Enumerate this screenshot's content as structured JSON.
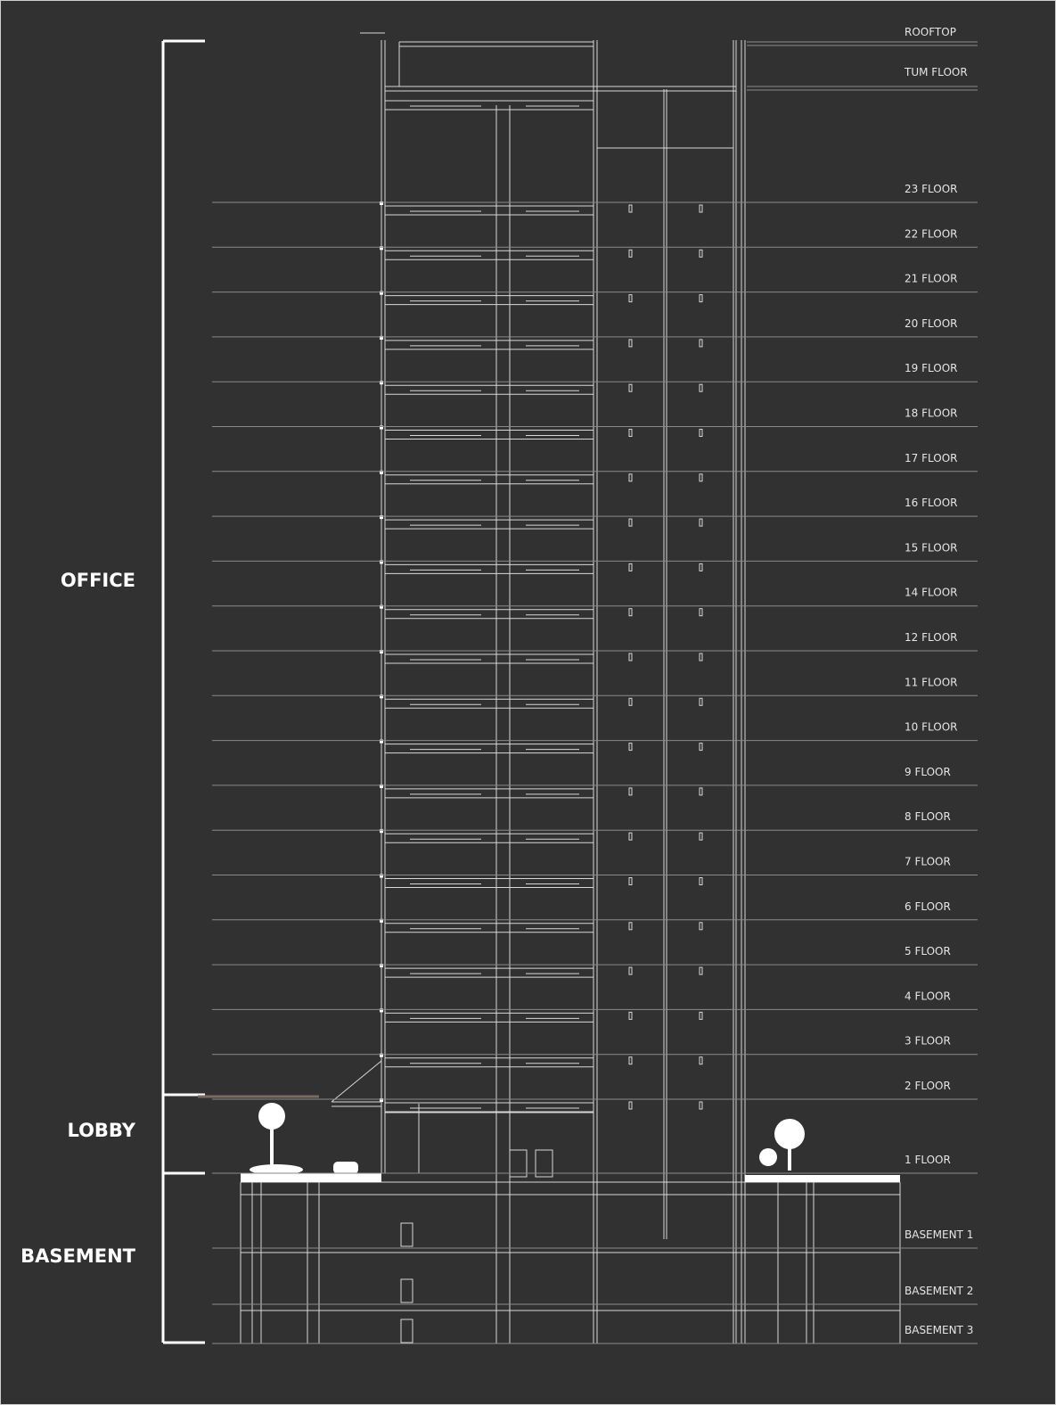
{
  "sections": [
    {
      "label": "OFFICE"
    },
    {
      "label": "LOBBY"
    },
    {
      "label": "BASEMENT"
    }
  ],
  "levels": [
    {
      "label": "ROOFTOP"
    },
    {
      "label": "TUM FLOOR"
    },
    {
      "label": "23 FLOOR"
    },
    {
      "label": "22 FLOOR"
    },
    {
      "label": "21 FLOOR"
    },
    {
      "label": "20 FLOOR"
    },
    {
      "label": "19 FLOOR"
    },
    {
      "label": "18 FLOOR"
    },
    {
      "label": "17 FLOOR"
    },
    {
      "label": "16 FLOOR"
    },
    {
      "label": "15 FLOOR"
    },
    {
      "label": "14 FLOOR"
    },
    {
      "label": "12 FLOOR"
    },
    {
      "label": "11 FLOOR"
    },
    {
      "label": "10 FLOOR"
    },
    {
      "label": "9 FLOOR"
    },
    {
      "label": "8 FLOOR"
    },
    {
      "label": "7 FLOOR"
    },
    {
      "label": "6 FLOOR"
    },
    {
      "label": "5 FLOOR"
    },
    {
      "label": "4 FLOOR"
    },
    {
      "label": "3 FLOOR"
    },
    {
      "label": "2 FLOOR"
    },
    {
      "label": "1 FLOOR"
    },
    {
      "label": "BASEMENT 1"
    },
    {
      "label": "BASEMENT 2"
    },
    {
      "label": "BASEMENT 3"
    }
  ]
}
